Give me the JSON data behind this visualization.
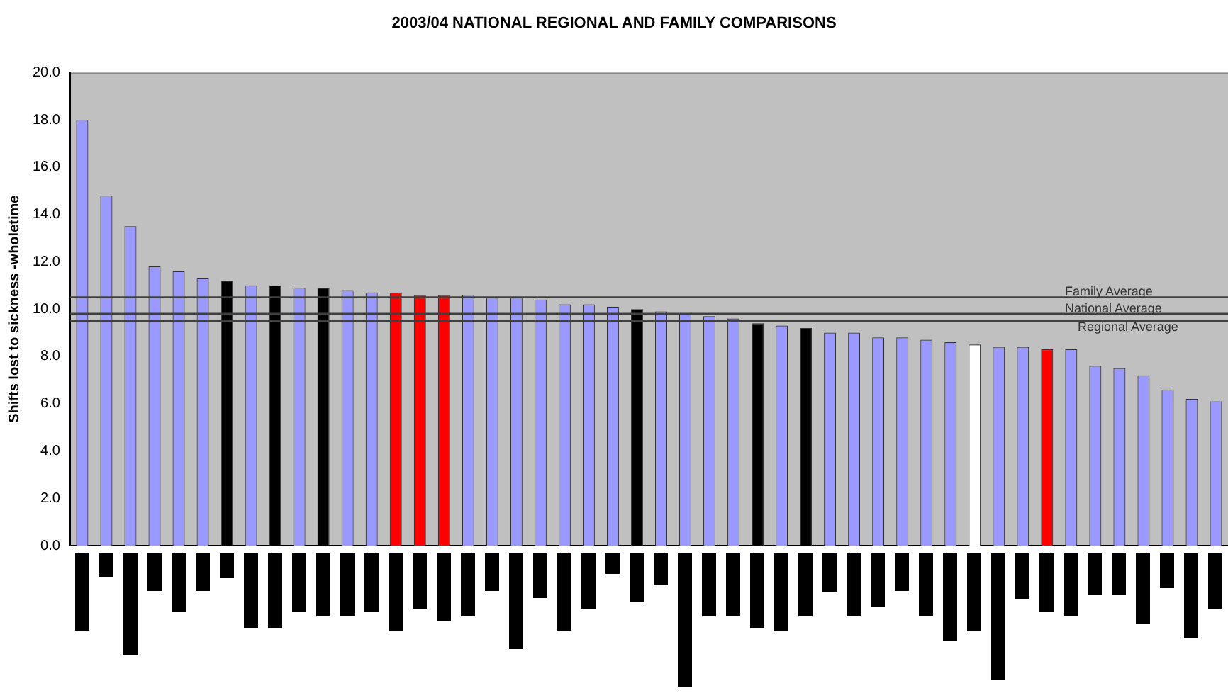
{
  "chart_data": {
    "type": "bar",
    "title": "2003/04 NATIONAL REGIONAL AND FAMILY COMPARISONS",
    "ylabel": "Shifts lost to sickness -wholetime",
    "categories": [
      null,
      null,
      null,
      null,
      null,
      null,
      null,
      null,
      null,
      null,
      null,
      null,
      null,
      null,
      null,
      null,
      null,
      null,
      null,
      null,
      null,
      null,
      null,
      null,
      null,
      null,
      null,
      null,
      null,
      null,
      null,
      null,
      null,
      null,
      null,
      null,
      null,
      null,
      null,
      null,
      null,
      null,
      null,
      null,
      null,
      null,
      null,
      null
    ],
    "values": [
      18.0,
      14.8,
      13.5,
      11.8,
      11.6,
      11.3,
      11.2,
      11.0,
      11.0,
      10.9,
      10.9,
      10.8,
      10.7,
      10.7,
      10.6,
      10.6,
      10.6,
      10.5,
      10.5,
      10.4,
      10.2,
      10.2,
      10.1,
      10.0,
      9.9,
      9.8,
      9.7,
      9.6,
      9.4,
      9.3,
      9.2,
      9.0,
      9.0,
      8.8,
      8.8,
      8.7,
      8.6,
      8.5,
      8.4,
      8.4,
      8.3,
      8.3,
      7.6,
      7.5,
      7.2,
      6.6,
      6.2,
      6.1
    ],
    "colors": [
      "#9999ff",
      "#9999ff",
      "#9999ff",
      "#9999ff",
      "#9999ff",
      "#9999ff",
      "#000000",
      "#9999ff",
      "#000000",
      "#9999ff",
      "#000000",
      "#9999ff",
      "#9999ff",
      "#ff0000",
      "#ff0000",
      "#ff0000",
      "#9999ff",
      "#9999ff",
      "#9999ff",
      "#9999ff",
      "#9999ff",
      "#9999ff",
      "#9999ff",
      "#000000",
      "#9999ff",
      "#9999ff",
      "#9999ff",
      "#9999ff",
      "#000000",
      "#9999ff",
      "#000000",
      "#9999ff",
      "#9999ff",
      "#9999ff",
      "#9999ff",
      "#9999ff",
      "#9999ff",
      "#ffffff",
      "#9999ff",
      "#9999ff",
      "#ff0000",
      "#9999ff",
      "#9999ff",
      "#9999ff",
      "#9999ff",
      "#9999ff",
      "#9999ff",
      "#9999ff"
    ],
    "ylim": [
      0,
      20
    ],
    "yticks": [
      {
        "value": 0,
        "label": "0.0"
      },
      {
        "value": 2,
        "label": "2.0"
      },
      {
        "value": 4,
        "label": "4.0"
      },
      {
        "value": 6,
        "label": "6.0"
      },
      {
        "value": 8,
        "label": "8.0"
      },
      {
        "value": 10,
        "label": "10.0"
      },
      {
        "value": 12,
        "label": "12.0"
      },
      {
        "value": 14,
        "label": "14.0"
      },
      {
        "value": 16,
        "label": "16.0"
      },
      {
        "value": 18,
        "label": "18.0"
      },
      {
        "value": 20,
        "label": "20.0"
      }
    ],
    "ref_lines": [
      {
        "axis": "y",
        "value": 10.5,
        "label": "Family Average",
        "color": "#404040"
      },
      {
        "axis": "y",
        "value": 9.8,
        "label": "National Average",
        "color": "#404040"
      },
      {
        "axis": "y",
        "value": 9.5,
        "label": "Regional Average",
        "color": "#404040"
      }
    ],
    "grid": false,
    "legend": false
  }
}
